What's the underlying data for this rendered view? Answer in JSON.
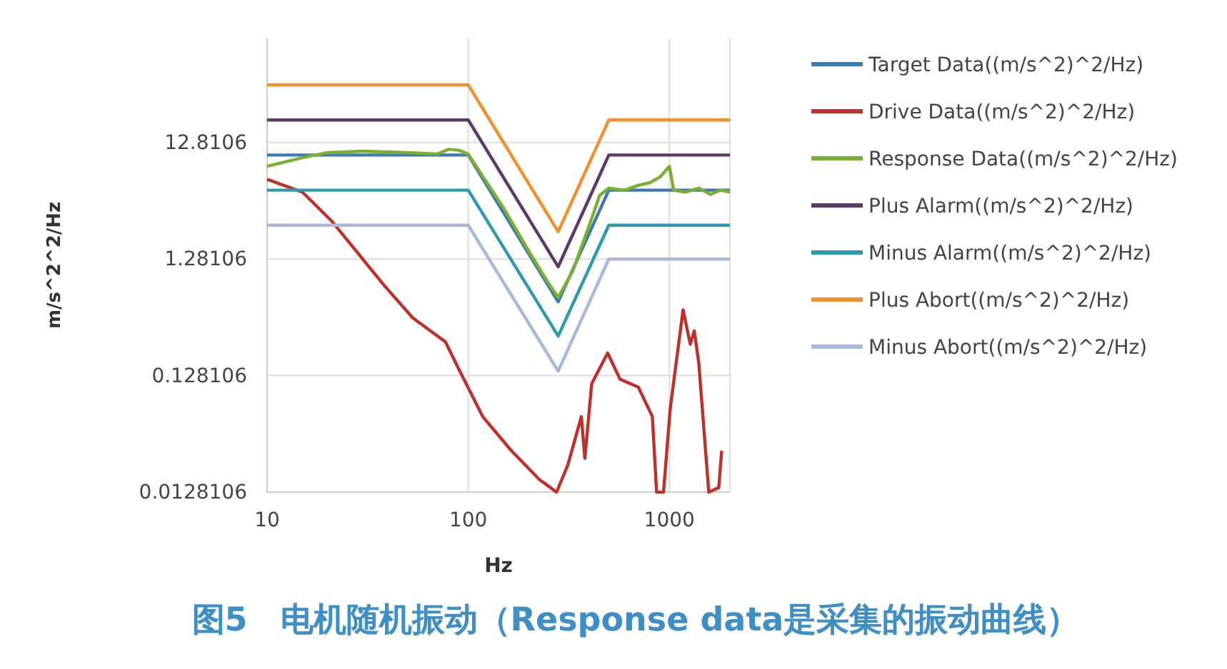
{
  "chart_data": {
    "type": "line",
    "title": "图5　电机随机振动（Response data是采集的振动曲线）",
    "xlabel": "Hz",
    "ylabel": "m/s^2^2/Hz",
    "log": "xy",
    "grid": true,
    "legend": "right",
    "marker": "none",
    "line_style": "solid",
    "xlim": [
      10,
      2000
    ],
    "xticks": [
      10,
      100,
      1000
    ],
    "ylim": [
      0.0128106,
      100
    ],
    "yticks": [
      0.0128106,
      0.128106,
      1.28106,
      12.8106
    ],
    "series": [
      {
        "name": "Target Data((m/s^2)^2/Hz)",
        "color": "#3c78b4",
        "x": [
          10,
          100,
          280,
          500,
          2000
        ],
        "values": [
          10,
          10,
          0.55,
          5,
          5
        ]
      },
      {
        "name": "Drive Data((m/s^2)^2/Hz)",
        "color": "#c0302a",
        "x": [
          10,
          15,
          21,
          38,
          53,
          77,
          90,
          118,
          164,
          226,
          275,
          313,
          365,
          380,
          411,
          493,
          569,
          701,
          823,
          864,
          935,
          1010,
          1170,
          1270,
          1330,
          1400,
          1570,
          1760,
          1820
        ],
        "values": [
          6.2,
          4.8,
          2.7,
          0.77,
          0.4,
          0.25,
          0.144,
          0.057,
          0.029,
          0.0164,
          0.0128106,
          0.022,
          0.057,
          0.025,
          0.109,
          0.2,
          0.119,
          0.102,
          0.057,
          0.0128106,
          0.0128106,
          0.067,
          0.47,
          0.238,
          0.31,
          0.165,
          0.0128106,
          0.014,
          0.029
        ]
      },
      {
        "name": "Response Data((m/s^2)^2/Hz)",
        "color": "#7ab030",
        "x": [
          10,
          15,
          20,
          30,
          50,
          70,
          80,
          90,
          100,
          150,
          200,
          250,
          280,
          330,
          400,
          450,
          500,
          600,
          700,
          800,
          900,
          1000,
          1050,
          1200,
          1400,
          1600,
          1800,
          2000
        ],
        "values": [
          8,
          9.5,
          10.5,
          10.8,
          10.5,
          10.2,
          11.2,
          11,
          10.2,
          3.5,
          1.5,
          0.8,
          0.6,
          1.0,
          2.5,
          4.5,
          5.2,
          5.0,
          5.5,
          5.8,
          6.5,
          8.0,
          5.0,
          4.8,
          5.2,
          4.6,
          5.0,
          4.8
        ]
      },
      {
        "name": "Plus Alarm((m/s^2)^2/Hz)",
        "color": "#5b3a6b",
        "x": [
          10,
          100,
          280,
          500,
          2000
        ],
        "values": [
          20,
          20,
          1.1,
          10,
          10
        ]
      },
      {
        "name": "Minus Alarm((m/s^2)^2/Hz)",
        "color": "#2d9ab0",
        "x": [
          10,
          100,
          280,
          500,
          2000
        ],
        "values": [
          5,
          5,
          0.28,
          2.5,
          2.5
        ]
      },
      {
        "name": "Plus Abort((m/s^2)^2/Hz)",
        "color": "#f0902e",
        "x": [
          10,
          100,
          280,
          500,
          2000
        ],
        "values": [
          40,
          40,
          2.2,
          20,
          20
        ]
      },
      {
        "name": "Minus Abort((m/s^2)^2/Hz)",
        "color": "#a8b8dc",
        "x": [
          10,
          100,
          280,
          500,
          2000
        ],
        "values": [
          2.5,
          2.5,
          0.14,
          1.28,
          1.28
        ]
      }
    ]
  }
}
